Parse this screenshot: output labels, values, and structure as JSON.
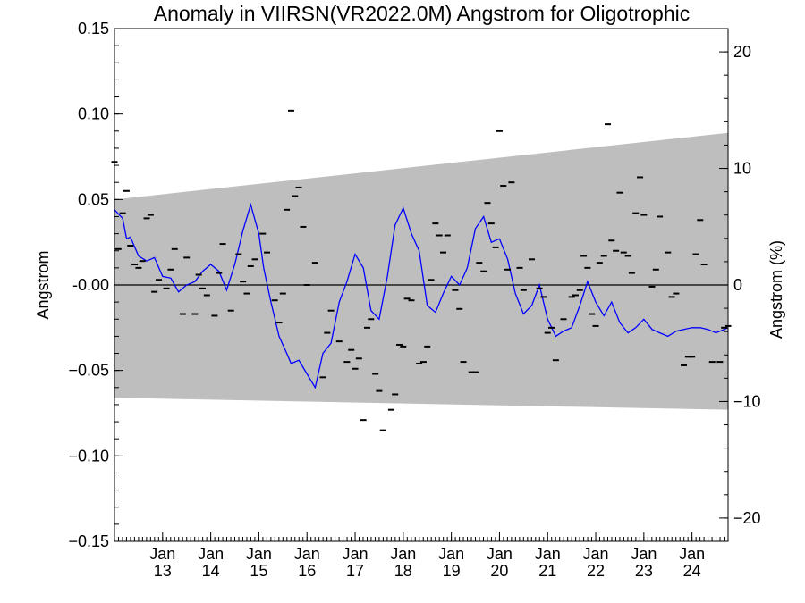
{
  "chart_data": {
    "type": "line",
    "title": "Anomaly in VIIRSN(VR2022.0M) Angstrom for Oligotrophic",
    "ylabel": "Angstrom",
    "ylabel_right": "Angstrom (%)",
    "xlabel": "",
    "xlim": [
      2012.0,
      2024.75
    ],
    "ylim": [
      -0.15,
      0.15
    ],
    "ylim_right": [
      -22,
      22
    ],
    "y_ticks": [
      {
        "value": 0.15,
        "label": "0.15"
      },
      {
        "value": 0.1,
        "label": "0.10"
      },
      {
        "value": 0.05,
        "label": "0.05"
      },
      {
        "value": 0.0,
        "label": "-0.00"
      },
      {
        "value": -0.05,
        "label": "−0.05"
      },
      {
        "value": -0.1,
        "label": "−0.10"
      },
      {
        "value": -0.15,
        "label": "−0.15"
      }
    ],
    "y_right_ticks": [
      {
        "value": 20,
        "label": "20"
      },
      {
        "value": 10,
        "label": "10"
      },
      {
        "value": 0,
        "label": "0"
      },
      {
        "value": -10,
        "label": "−10"
      },
      {
        "value": -20,
        "label": "−20"
      }
    ],
    "x_ticks": [
      {
        "value": 2013,
        "month": "Jan",
        "year": "13"
      },
      {
        "value": 2014,
        "month": "Jan",
        "year": "14"
      },
      {
        "value": 2015,
        "month": "Jan",
        "year": "15"
      },
      {
        "value": 2016,
        "month": "Jan",
        "year": "16"
      },
      {
        "value": 2017,
        "month": "Jan",
        "year": "17"
      },
      {
        "value": 2018,
        "month": "Jan",
        "year": "18"
      },
      {
        "value": 2019,
        "month": "Jan",
        "year": "19"
      },
      {
        "value": 2020,
        "month": "Jan",
        "year": "20"
      },
      {
        "value": 2021,
        "month": "Jan",
        "year": "21"
      },
      {
        "value": 2022,
        "month": "Jan",
        "year": "22"
      },
      {
        "value": 2023,
        "month": "Jan",
        "year": "23"
      },
      {
        "value": 2024,
        "month": "Jan",
        "year": "24"
      }
    ],
    "envelope": {
      "x": [
        2012.0,
        2024.75
      ],
      "upper": [
        0.05,
        0.089
      ],
      "lower": [
        -0.066,
        -0.073
      ],
      "color": "#bebebe"
    },
    "zero_line": 0,
    "series": [
      {
        "kind": "line",
        "color": "#0000ff",
        "x": [
          2012.0,
          2012.17,
          2012.25,
          2012.33,
          2012.5,
          2012.67,
          2012.83,
          2013.0,
          2013.17,
          2013.33,
          2013.5,
          2013.67,
          2013.83,
          2014.0,
          2014.17,
          2014.33,
          2014.5,
          2014.67,
          2014.83,
          2015.0,
          2015.1,
          2015.25,
          2015.42,
          2015.58,
          2015.67,
          2015.83,
          2016.0,
          2016.17,
          2016.33,
          2016.5,
          2016.67,
          2016.83,
          2017.0,
          2017.17,
          2017.33,
          2017.5,
          2017.67,
          2017.83,
          2018.0,
          2018.17,
          2018.33,
          2018.5,
          2018.67,
          2018.83,
          2019.0,
          2019.17,
          2019.33,
          2019.5,
          2019.67,
          2019.83,
          2020.0,
          2020.17,
          2020.33,
          2020.5,
          2020.67,
          2020.83,
          2021.0,
          2021.17,
          2021.33,
          2021.5,
          2021.67,
          2021.83,
          2022.0,
          2022.17,
          2022.33,
          2022.5,
          2022.67,
          2022.83,
          2023.0,
          2023.17,
          2023.33,
          2023.5,
          2023.67,
          2023.83,
          2024.0,
          2024.17,
          2024.33,
          2024.5,
          2024.67,
          2024.75
        ],
        "y": [
          0.044,
          0.039,
          0.027,
          0.028,
          0.017,
          0.014,
          0.016,
          0.005,
          0.004,
          -0.004,
          0.0,
          0.002,
          0.008,
          0.012,
          0.008,
          -0.003,
          0.012,
          0.032,
          0.047,
          0.03,
          0.01,
          -0.01,
          -0.03,
          -0.04,
          -0.046,
          -0.044,
          -0.052,
          -0.06,
          -0.04,
          -0.034,
          -0.01,
          0.002,
          0.018,
          0.01,
          -0.015,
          -0.02,
          0.005,
          0.035,
          0.045,
          0.03,
          0.02,
          -0.012,
          -0.016,
          -0.005,
          0.005,
          0.0,
          0.01,
          0.033,
          0.04,
          0.025,
          0.027,
          0.015,
          -0.005,
          -0.017,
          -0.012,
          0.0,
          -0.02,
          -0.03,
          -0.027,
          -0.025,
          -0.012,
          0.002,
          -0.01,
          -0.018,
          -0.01,
          -0.022,
          -0.028,
          -0.025,
          -0.02,
          -0.026,
          -0.028,
          -0.03,
          -0.027,
          -0.026,
          -0.025,
          -0.025,
          -0.026,
          -0.028,
          -0.026,
          -0.025
        ]
      },
      {
        "kind": "points",
        "color": "#000000",
        "x": [
          2012.0,
          2012.08,
          2012.17,
          2012.25,
          2012.33,
          2012.42,
          2012.5,
          2012.58,
          2012.67,
          2012.75,
          2012.83,
          2012.92,
          2013.08,
          2013.17,
          2013.25,
          2013.42,
          2013.5,
          2013.67,
          2013.75,
          2013.83,
          2013.92,
          2014.08,
          2014.17,
          2014.25,
          2014.42,
          2014.58,
          2014.67,
          2014.75,
          2014.83,
          2014.92,
          2015.08,
          2015.17,
          2015.33,
          2015.42,
          2015.5,
          2015.58,
          2015.67,
          2015.75,
          2015.83,
          2015.92,
          2016.0,
          2016.17,
          2016.33,
          2016.42,
          2016.5,
          2016.67,
          2016.83,
          2016.92,
          2017.0,
          2017.08,
          2017.17,
          2017.25,
          2017.33,
          2017.42,
          2017.5,
          2017.58,
          2017.75,
          2017.83,
          2017.92,
          2018.0,
          2018.08,
          2018.17,
          2018.33,
          2018.42,
          2018.5,
          2018.58,
          2018.67,
          2018.75,
          2018.83,
          2018.92,
          2019.08,
          2019.17,
          2019.25,
          2019.42,
          2019.5,
          2019.58,
          2019.67,
          2019.75,
          2019.83,
          2019.92,
          2020.0,
          2020.08,
          2020.17,
          2020.25,
          2020.42,
          2020.5,
          2020.67,
          2020.83,
          2020.92,
          2021.0,
          2021.08,
          2021.17,
          2021.33,
          2021.5,
          2021.58,
          2021.67,
          2021.75,
          2021.83,
          2021.92,
          2022.0,
          2022.08,
          2022.17,
          2022.25,
          2022.33,
          2022.42,
          2022.5,
          2022.58,
          2022.67,
          2022.75,
          2022.83,
          2022.92,
          2023.0,
          2023.17,
          2023.25,
          2023.33,
          2023.5,
          2023.58,
          2023.67,
          2023.83,
          2023.92,
          2024.0,
          2024.08,
          2024.17,
          2024.25,
          2024.42,
          2024.58,
          2024.67,
          2024.75
        ],
        "y": [
          0.072,
          0.021,
          0.042,
          0.055,
          0.023,
          0.012,
          0.01,
          0.014,
          0.039,
          0.041,
          -0.004,
          0.003,
          -0.002,
          0.009,
          0.021,
          -0.017,
          0.016,
          -0.017,
          0.006,
          -0.002,
          -0.006,
          -0.018,
          0.007,
          0.024,
          -0.015,
          0.018,
          0.002,
          -0.005,
          0.011,
          0.015,
          0.03,
          0.019,
          -0.009,
          -0.022,
          -0.005,
          0.044,
          0.102,
          0.052,
          0.057,
          0.034,
          0.0,
          0.013,
          -0.054,
          -0.028,
          -0.015,
          -0.033,
          -0.045,
          -0.038,
          -0.049,
          -0.043,
          -0.079,
          -0.025,
          -0.02,
          -0.052,
          -0.062,
          -0.085,
          -0.073,
          -0.064,
          -0.035,
          -0.036,
          -0.008,
          -0.009,
          -0.046,
          -0.045,
          -0.036,
          0.003,
          0.036,
          0.029,
          0.019,
          0.029,
          -0.003,
          -0.014,
          -0.045,
          -0.051,
          -0.051,
          0.013,
          0.008,
          0.048,
          0.036,
          0.022,
          0.09,
          0.058,
          0.009,
          0.06,
          0.01,
          -0.003,
          0.015,
          -0.002,
          -0.007,
          -0.028,
          -0.025,
          -0.044,
          -0.02,
          -0.007,
          -0.006,
          -0.003,
          0.017,
          0.01,
          -0.017,
          -0.024,
          0.013,
          0.017,
          0.094,
          0.026,
          0.02,
          0.054,
          0.019,
          0.017,
          0.007,
          0.042,
          0.063,
          0.041,
          -0.001,
          0.009,
          0.04,
          0.019,
          -0.007,
          -0.005,
          -0.047,
          -0.042,
          -0.042,
          0.018,
          0.038,
          0.012,
          -0.045,
          -0.045,
          -0.025,
          -0.024
        ]
      }
    ]
  }
}
